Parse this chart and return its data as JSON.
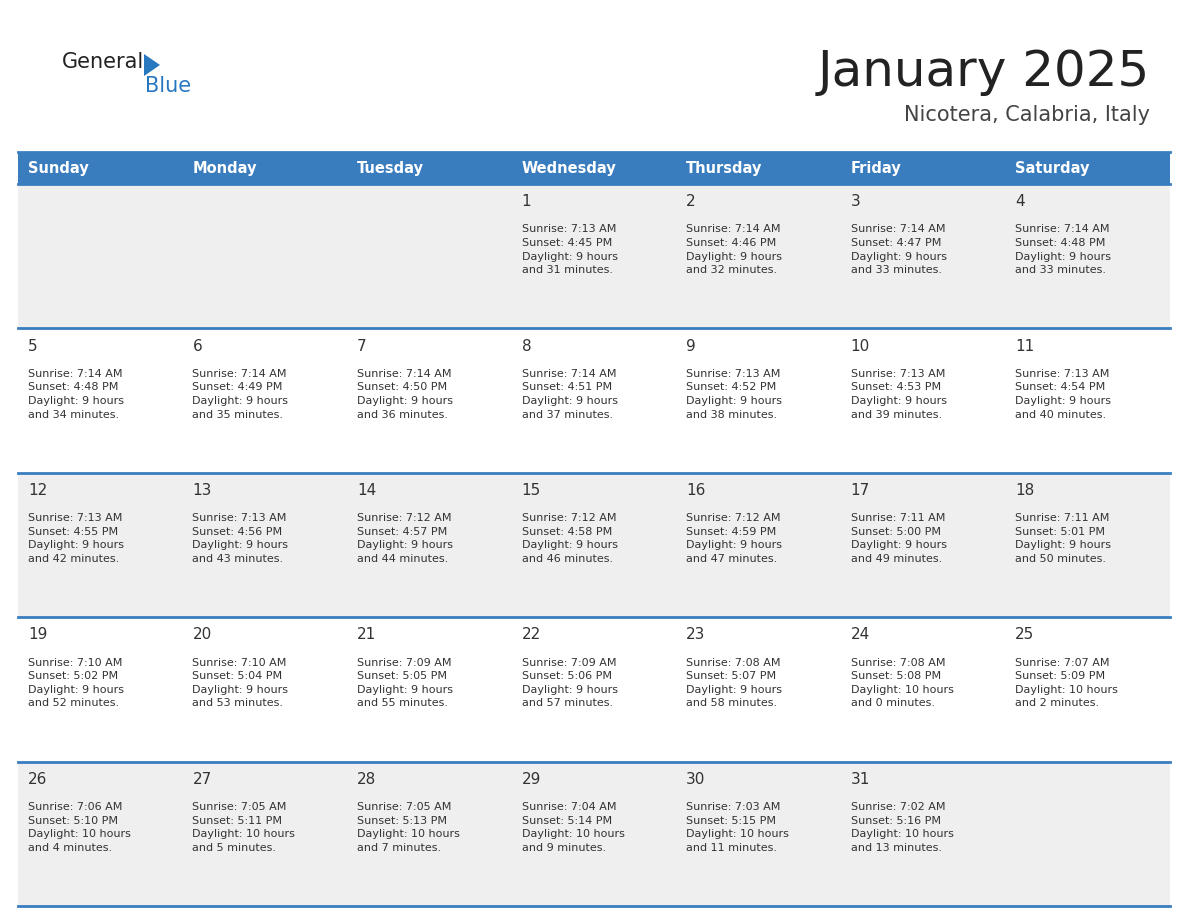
{
  "title": "January 2025",
  "subtitle": "Nicotera, Calabria, Italy",
  "days_of_week": [
    "Sunday",
    "Monday",
    "Tuesday",
    "Wednesday",
    "Thursday",
    "Friday",
    "Saturday"
  ],
  "header_bg": "#3a7dbf",
  "header_text": "#ffffff",
  "row_bg_odd": "#efefef",
  "row_bg_even": "#ffffff",
  "border_color": "#3a7dbf",
  "day_num_color": "#333333",
  "cell_text_color": "#333333",
  "title_color": "#222222",
  "subtitle_color": "#444444",
  "logo_general_color": "#222222",
  "logo_blue_color": "#2878c0",
  "logo_triangle_color": "#2878c0",
  "calendar": [
    [
      {
        "day": "",
        "info": ""
      },
      {
        "day": "",
        "info": ""
      },
      {
        "day": "",
        "info": ""
      },
      {
        "day": "1",
        "info": "Sunrise: 7:13 AM\nSunset: 4:45 PM\nDaylight: 9 hours\nand 31 minutes."
      },
      {
        "day": "2",
        "info": "Sunrise: 7:14 AM\nSunset: 4:46 PM\nDaylight: 9 hours\nand 32 minutes."
      },
      {
        "day": "3",
        "info": "Sunrise: 7:14 AM\nSunset: 4:47 PM\nDaylight: 9 hours\nand 33 minutes."
      },
      {
        "day": "4",
        "info": "Sunrise: 7:14 AM\nSunset: 4:48 PM\nDaylight: 9 hours\nand 33 minutes."
      }
    ],
    [
      {
        "day": "5",
        "info": "Sunrise: 7:14 AM\nSunset: 4:48 PM\nDaylight: 9 hours\nand 34 minutes."
      },
      {
        "day": "6",
        "info": "Sunrise: 7:14 AM\nSunset: 4:49 PM\nDaylight: 9 hours\nand 35 minutes."
      },
      {
        "day": "7",
        "info": "Sunrise: 7:14 AM\nSunset: 4:50 PM\nDaylight: 9 hours\nand 36 minutes."
      },
      {
        "day": "8",
        "info": "Sunrise: 7:14 AM\nSunset: 4:51 PM\nDaylight: 9 hours\nand 37 minutes."
      },
      {
        "day": "9",
        "info": "Sunrise: 7:13 AM\nSunset: 4:52 PM\nDaylight: 9 hours\nand 38 minutes."
      },
      {
        "day": "10",
        "info": "Sunrise: 7:13 AM\nSunset: 4:53 PM\nDaylight: 9 hours\nand 39 minutes."
      },
      {
        "day": "11",
        "info": "Sunrise: 7:13 AM\nSunset: 4:54 PM\nDaylight: 9 hours\nand 40 minutes."
      }
    ],
    [
      {
        "day": "12",
        "info": "Sunrise: 7:13 AM\nSunset: 4:55 PM\nDaylight: 9 hours\nand 42 minutes."
      },
      {
        "day": "13",
        "info": "Sunrise: 7:13 AM\nSunset: 4:56 PM\nDaylight: 9 hours\nand 43 minutes."
      },
      {
        "day": "14",
        "info": "Sunrise: 7:12 AM\nSunset: 4:57 PM\nDaylight: 9 hours\nand 44 minutes."
      },
      {
        "day": "15",
        "info": "Sunrise: 7:12 AM\nSunset: 4:58 PM\nDaylight: 9 hours\nand 46 minutes."
      },
      {
        "day": "16",
        "info": "Sunrise: 7:12 AM\nSunset: 4:59 PM\nDaylight: 9 hours\nand 47 minutes."
      },
      {
        "day": "17",
        "info": "Sunrise: 7:11 AM\nSunset: 5:00 PM\nDaylight: 9 hours\nand 49 minutes."
      },
      {
        "day": "18",
        "info": "Sunrise: 7:11 AM\nSunset: 5:01 PM\nDaylight: 9 hours\nand 50 minutes."
      }
    ],
    [
      {
        "day": "19",
        "info": "Sunrise: 7:10 AM\nSunset: 5:02 PM\nDaylight: 9 hours\nand 52 minutes."
      },
      {
        "day": "20",
        "info": "Sunrise: 7:10 AM\nSunset: 5:04 PM\nDaylight: 9 hours\nand 53 minutes."
      },
      {
        "day": "21",
        "info": "Sunrise: 7:09 AM\nSunset: 5:05 PM\nDaylight: 9 hours\nand 55 minutes."
      },
      {
        "day": "22",
        "info": "Sunrise: 7:09 AM\nSunset: 5:06 PM\nDaylight: 9 hours\nand 57 minutes."
      },
      {
        "day": "23",
        "info": "Sunrise: 7:08 AM\nSunset: 5:07 PM\nDaylight: 9 hours\nand 58 minutes."
      },
      {
        "day": "24",
        "info": "Sunrise: 7:08 AM\nSunset: 5:08 PM\nDaylight: 10 hours\nand 0 minutes."
      },
      {
        "day": "25",
        "info": "Sunrise: 7:07 AM\nSunset: 5:09 PM\nDaylight: 10 hours\nand 2 minutes."
      }
    ],
    [
      {
        "day": "26",
        "info": "Sunrise: 7:06 AM\nSunset: 5:10 PM\nDaylight: 10 hours\nand 4 minutes."
      },
      {
        "day": "27",
        "info": "Sunrise: 7:05 AM\nSunset: 5:11 PM\nDaylight: 10 hours\nand 5 minutes."
      },
      {
        "day": "28",
        "info": "Sunrise: 7:05 AM\nSunset: 5:13 PM\nDaylight: 10 hours\nand 7 minutes."
      },
      {
        "day": "29",
        "info": "Sunrise: 7:04 AM\nSunset: 5:14 PM\nDaylight: 10 hours\nand 9 minutes."
      },
      {
        "day": "30",
        "info": "Sunrise: 7:03 AM\nSunset: 5:15 PM\nDaylight: 10 hours\nand 11 minutes."
      },
      {
        "day": "31",
        "info": "Sunrise: 7:02 AM\nSunset: 5:16 PM\nDaylight: 10 hours\nand 13 minutes."
      },
      {
        "day": "",
        "info": ""
      }
    ]
  ]
}
